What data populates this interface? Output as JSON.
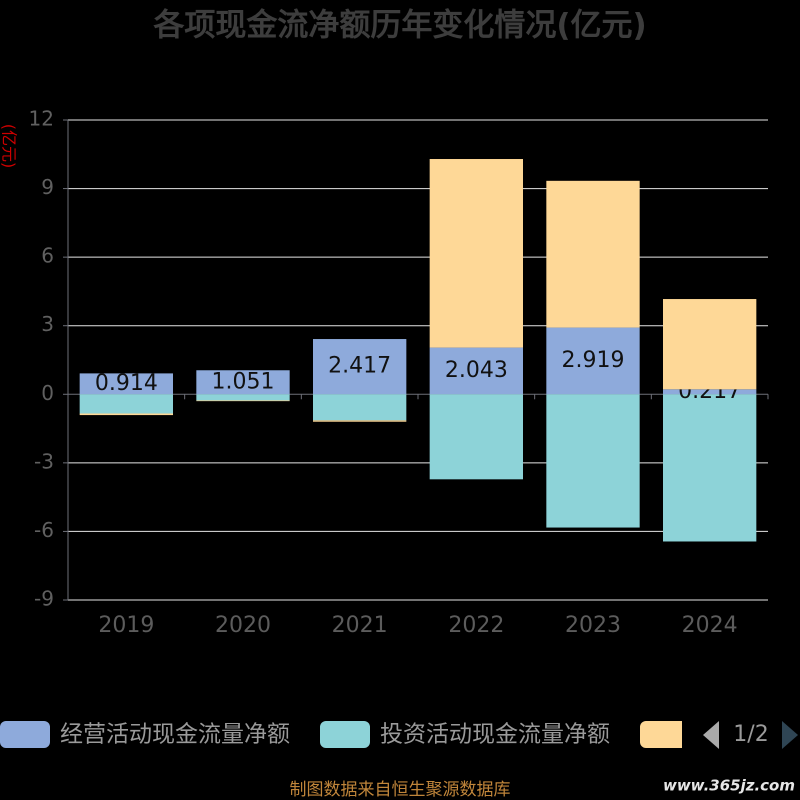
{
  "chart_data": {
    "type": "bar",
    "stacked": true,
    "title": "各项现金流净额历年变化情况(亿元)",
    "ylabel": "(亿元)",
    "xlabel": "",
    "categories": [
      "2019",
      "2020",
      "2021",
      "2022",
      "2023",
      "2024"
    ],
    "ylim": [
      -9,
      12
    ],
    "yticks": [
      12,
      9,
      6,
      3,
      0,
      -3,
      -6,
      -9
    ],
    "grid": true,
    "legend_position": "bottom",
    "series": [
      {
        "name": "经营活动现金流量净额",
        "color": "#8eaadb",
        "values": [
          0.914,
          1.051,
          2.417,
          2.043,
          2.919,
          0.217
        ],
        "labels": [
          "0.914",
          "1.051",
          "2.417",
          "2.043",
          "2.919",
          "0.217"
        ]
      },
      {
        "name": "投资活动现金流量净额",
        "color": "#8dd3d8",
        "values": [
          -0.84,
          -0.27,
          -1.14,
          -3.72,
          -5.83,
          -6.44
        ]
      },
      {
        "name": "",
        "color": "#fed897",
        "values": [
          -0.07,
          -0.03,
          -0.06,
          8.25,
          6.42,
          3.95
        ]
      }
    ]
  },
  "legend": {
    "page": "1/2"
  },
  "footer": {
    "source": "制图数据来自恒生聚源数据库",
    "watermark": "www.365jz.com"
  },
  "colors": {
    "background": "#000000",
    "title": "#3d3d3d",
    "axis_name": "#cc0000",
    "footer": "#c0853a",
    "pager_active": "#2f4554",
    "pager_inactive": "#aaaaaa"
  }
}
